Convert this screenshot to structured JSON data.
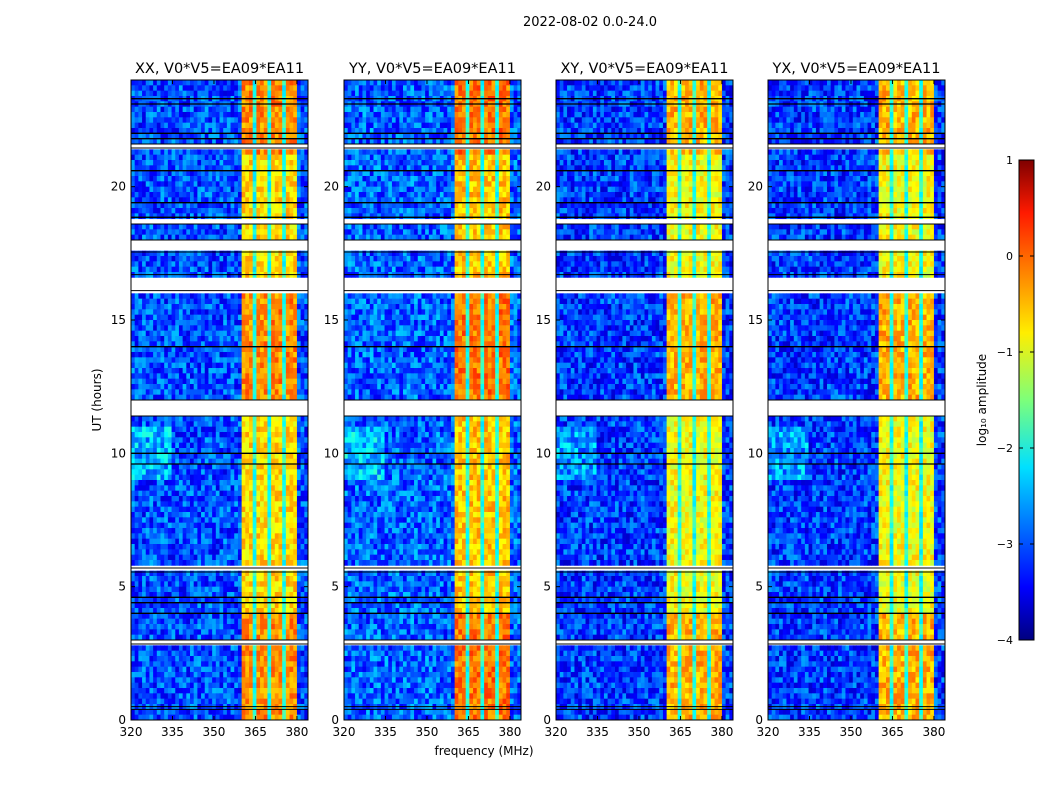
{
  "chart_data": {
    "type": "heatmap",
    "title": "2022-08-02 0.0-24.0",
    "xlabel": "frequency (MHz)",
    "ylabel": "UT (hours)",
    "xlim": [
      320,
      384
    ],
    "ylim": [
      0,
      24
    ],
    "xticks": [
      "320",
      "335",
      "350",
      "365",
      "380"
    ],
    "xtick_values": [
      320,
      335,
      350,
      365,
      380
    ],
    "yticks": [
      "0",
      "5",
      "10",
      "15",
      "20"
    ],
    "ytick_values": [
      0,
      5,
      10,
      15,
      20
    ],
    "panels": [
      {
        "title": "XX, V0*V5=EA09*EA11",
        "band_level": -0.6,
        "background_level": -3.0,
        "seed": 11
      },
      {
        "title": "YY, V0*V5=EA09*EA11",
        "band_level": -0.5,
        "background_level": -2.9,
        "seed": 23
      },
      {
        "title": "XY, V0*V5=EA09*EA11",
        "band_level": -0.8,
        "background_level": -3.1,
        "seed": 37
      },
      {
        "title": "YX, V0*V5=EA09*EA11",
        "band_level": -0.8,
        "background_level": -3.1,
        "seed": 53
      }
    ],
    "bright_band_mhz": [
      360.5,
      379.5
    ],
    "band_gaps_mhz": [
      365,
      370,
      375
    ],
    "hot_intervals_ut": [
      [
        21.2,
        24
      ],
      [
        11.5,
        16.5
      ],
      [
        2.9,
        3.9
      ],
      [
        0,
        2.8
      ]
    ],
    "flagged_intervals_ut": [
      [
        21.45,
        21.6
      ],
      [
        18.6,
        18.85
      ],
      [
        17.55,
        18.0
      ],
      [
        16.1,
        16.7
      ],
      [
        11.4,
        12.0
      ],
      [
        5.55,
        5.7
      ],
      [
        2.85,
        3.0
      ],
      [
        0.4,
        0.5
      ]
    ],
    "flagged_lines_ut": [
      23.3,
      23.1,
      22.0,
      21.8,
      20.6,
      19.4,
      18.85,
      14.0,
      10.0,
      9.6,
      4.6,
      4.4,
      4.0
    ],
    "colorbar": {
      "label": "log₁₀ amplitude",
      "range": [
        -4,
        1
      ],
      "ticks": [
        "1",
        "0",
        "−1",
        "−2",
        "−3",
        "−4"
      ],
      "tick_values": [
        1,
        0,
        -1,
        -2,
        -3,
        -4
      ],
      "colormap": "jet"
    }
  }
}
